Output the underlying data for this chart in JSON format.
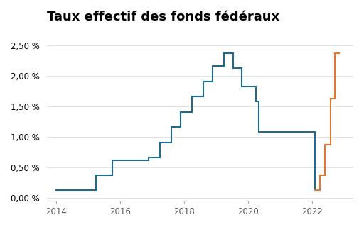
{
  "title": "Taux effectif des fonds fédéraux",
  "title_fontsize": 13,
  "background_color": "#ffffff",
  "blue_color": "#1f6b8e",
  "orange_color": "#e07832",
  "ylim": [
    -0.05,
    2.75
  ],
  "yticks": [
    0.0,
    0.5,
    1.0,
    1.5,
    2.0,
    2.5
  ],
  "ytick_labels": [
    "0,00 %",
    "0,50 %",
    "1,00 %",
    "1,50 %",
    "2,00 %",
    "2,50 %"
  ],
  "xlim_start": 2013.7,
  "xlim_end": 2023.3,
  "blue_x": [
    2014.0,
    2015.25,
    2015.25,
    2015.75,
    2015.75,
    2016.9,
    2016.9,
    2017.25,
    2017.25,
    2017.6,
    2017.6,
    2017.9,
    2017.9,
    2018.25,
    2018.25,
    2018.6,
    2018.6,
    2018.9,
    2018.9,
    2019.25,
    2019.25,
    2019.55,
    2019.55,
    2019.8,
    2019.8,
    2020.25,
    2020.25,
    2020.35,
    2020.35,
    2022.1,
    2022.1
  ],
  "blue_y": [
    0.12,
    0.12,
    0.37,
    0.37,
    0.62,
    0.62,
    0.66,
    0.66,
    0.91,
    0.91,
    1.16,
    1.16,
    1.41,
    1.41,
    1.66,
    1.66,
    1.91,
    1.91,
    2.16,
    2.16,
    2.38,
    2.38,
    2.13,
    2.13,
    1.83,
    1.83,
    1.58,
    1.58,
    1.08,
    1.08,
    0.12
  ],
  "orange_x": [
    2022.1,
    2022.25,
    2022.25,
    2022.42,
    2022.42,
    2022.58,
    2022.58,
    2022.72,
    2022.72,
    2022.85
  ],
  "orange_y": [
    0.12,
    0.12,
    0.37,
    0.37,
    0.87,
    0.87,
    1.63,
    1.63,
    2.38,
    2.38
  ],
  "xticks": [
    2014,
    2016,
    2018,
    2020,
    2022
  ],
  "xtick_labels": [
    "2014",
    "2016",
    "2018",
    "2020",
    "2022"
  ]
}
